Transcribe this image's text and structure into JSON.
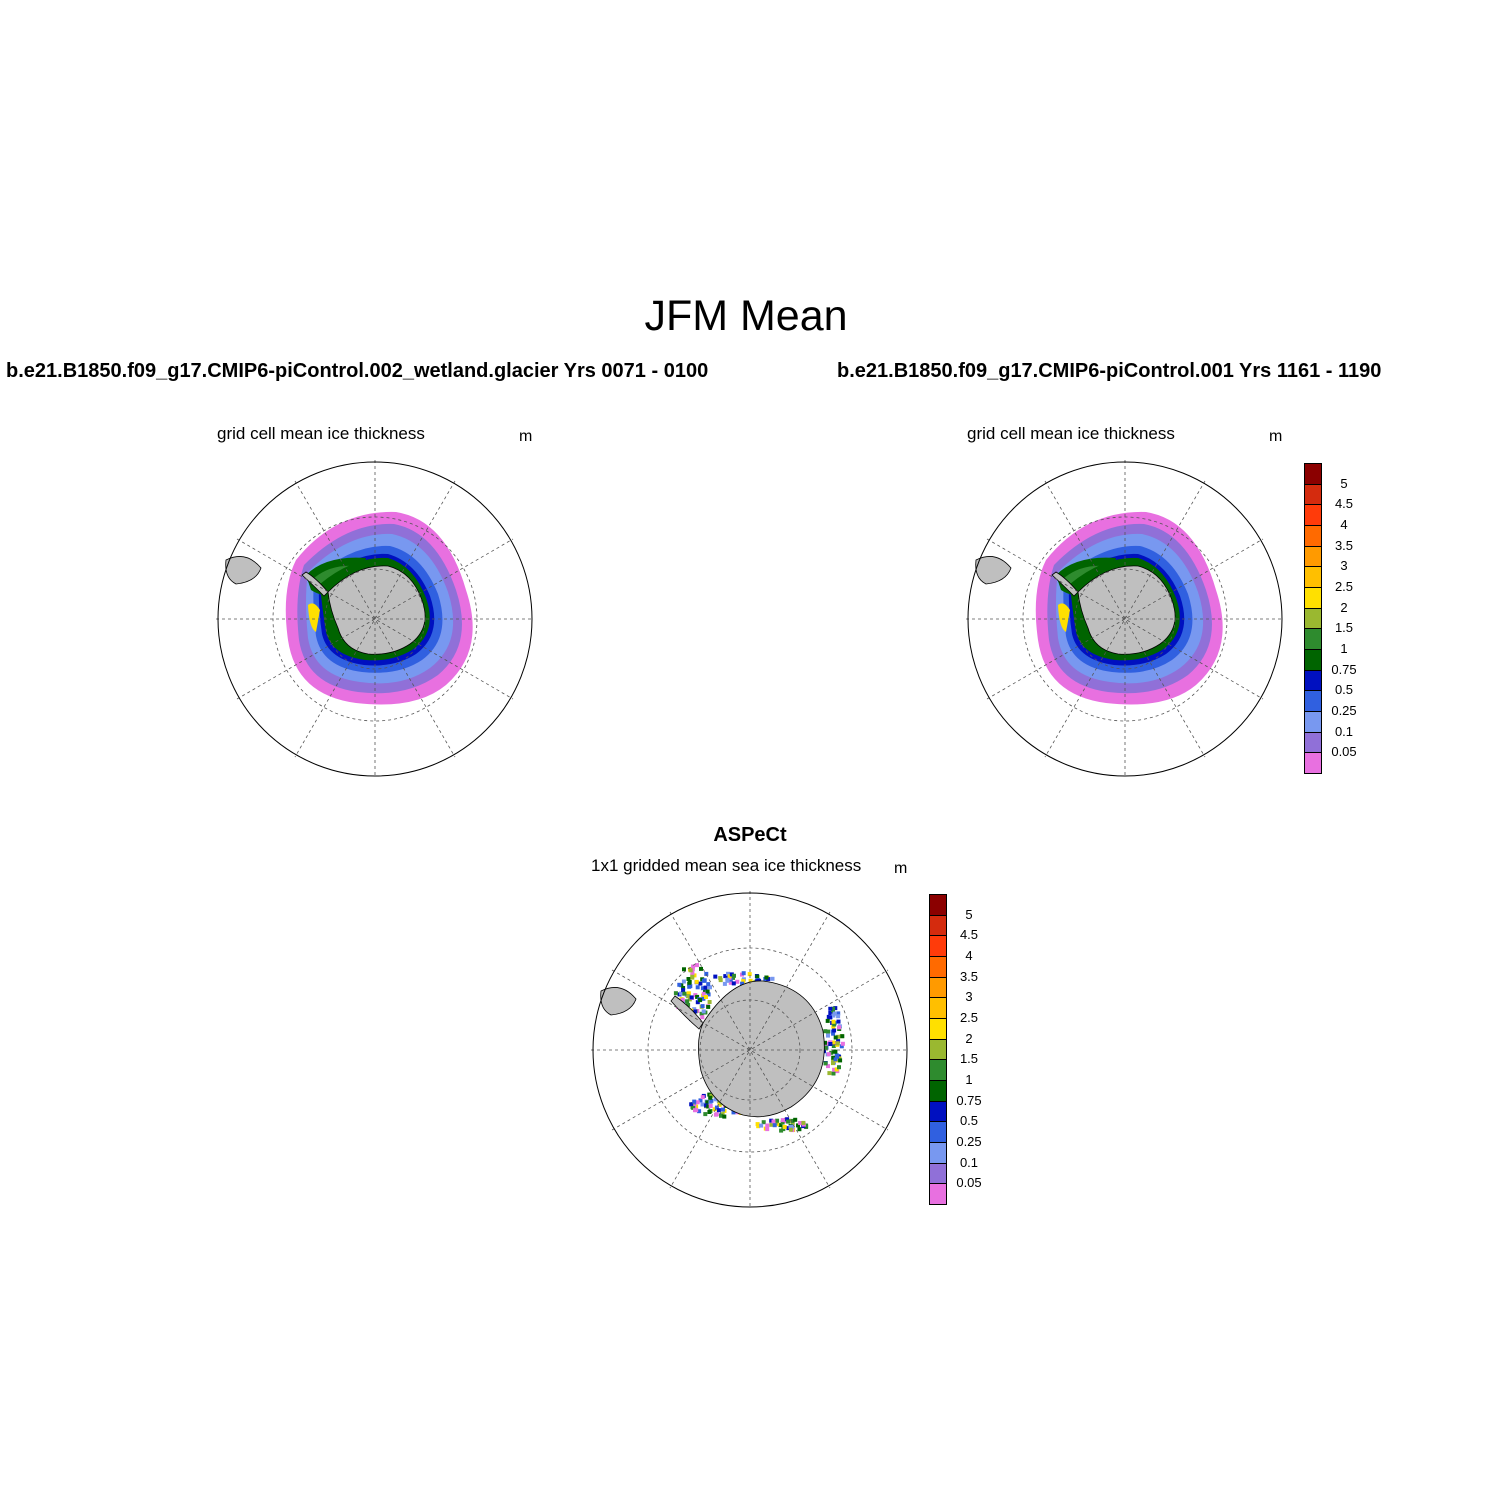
{
  "title": "JFM Mean",
  "panels": [
    {
      "run": "b.e21.B1850.f09_g17.CMIP6-piControl.002_wetland.glacier  Yrs 0071 - 0100",
      "variable": "grid cell mean ice thickness",
      "units": "m"
    },
    {
      "run": "b.e21.B1850.f09_g17.CMIP6-piControl.001  Yrs 1161 - 1190",
      "variable": "grid cell mean ice thickness",
      "units": "m"
    },
    {
      "run": "ASPeCt",
      "variable": "1x1 gridded mean sea ice thickness",
      "units": "m"
    }
  ],
  "colorbar": {
    "labels": [
      "5",
      "4.5",
      "4",
      "3.5",
      "3",
      "2.5",
      "2",
      "1.5",
      "1",
      "0.75",
      "0.5",
      "0.25",
      "0.1",
      "0.05"
    ],
    "colors": [
      "#8b0000",
      "#d42b0e",
      "#ff3b0a",
      "#ff6a00",
      "#ff9a00",
      "#ffbf00",
      "#ffe000",
      "#9ab830",
      "#2e8b2e",
      "#006400",
      "#0010c0",
      "#3060e0",
      "#7898f0",
      "#9070d8",
      "#e870e0"
    ]
  },
  "map": {
    "projection": "south polar stereographic",
    "land_color": "#bfbfbf"
  }
}
